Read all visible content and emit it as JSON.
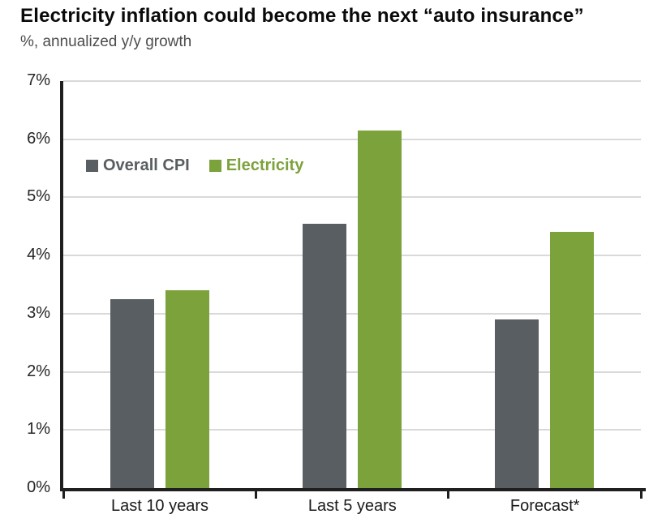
{
  "header": {
    "title": "Electricity inflation could become the next “auto insurance”",
    "subtitle": "%, annualized y/y growth"
  },
  "chart_data": {
    "type": "bar",
    "categories": [
      "Last 10 years",
      "Last 5 years",
      "Forecast*"
    ],
    "series": [
      {
        "name": "Overall CPI",
        "color": "#595E62",
        "values": [
          3.25,
          4.55,
          2.9
        ]
      },
      {
        "name": "Electricity",
        "color": "#7CA23C",
        "values": [
          3.4,
          6.15,
          4.4
        ]
      }
    ],
    "title": "Electricity inflation could become the next “auto insurance”",
    "xlabel": "",
    "ylabel": "%, annualized y/y growth",
    "ylim": [
      0,
      7
    ],
    "ytick_step": 1,
    "ytick_labels": [
      "0%",
      "1%",
      "2%",
      "3%",
      "4%",
      "5%",
      "6%",
      "7%"
    ],
    "grid": true,
    "legend_position": "upper-left-inside"
  },
  "colors": {
    "grid": "#D9D9D9",
    "axis": "#1F1F1F",
    "title_text": "#0A0A0A",
    "subtitle_text": "#4D4D4D",
    "tick_label": "#262626"
  }
}
